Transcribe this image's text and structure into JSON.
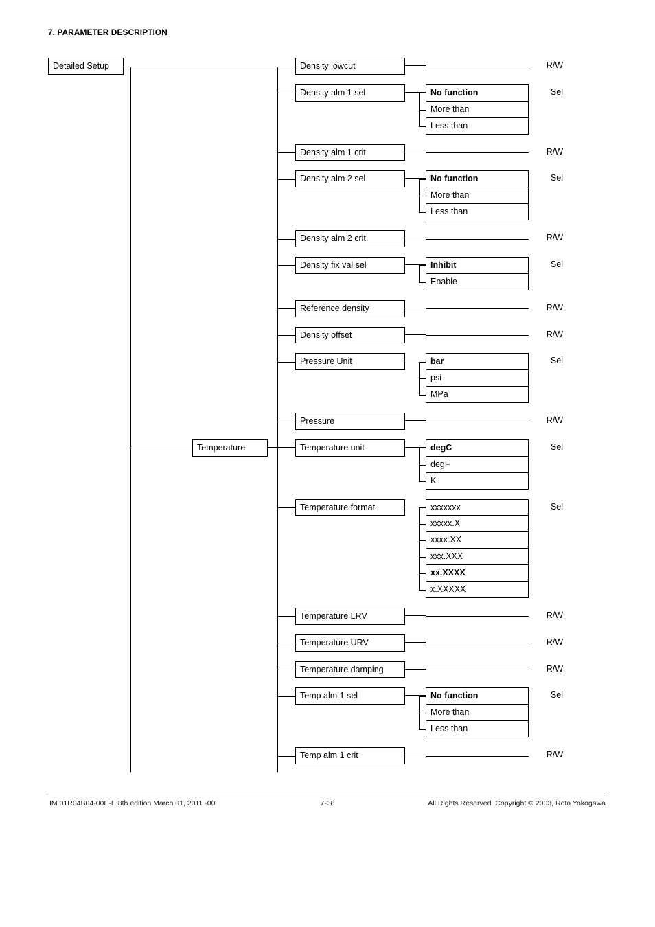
{
  "header": {
    "section_title": "7. PARAMETER DESCRIPTION"
  },
  "root": {
    "label": "Detailed Setup"
  },
  "category": {
    "temperature_label": "Temperature"
  },
  "params": {
    "density_lowcut": {
      "label": "Density lowcut",
      "tag": "R/W"
    },
    "density_alm1_sel": {
      "label": "Density alm 1 sel",
      "tag": "Sel",
      "opts": [
        "No function",
        "More than",
        "Less than"
      ],
      "bold_idx": 0
    },
    "density_alm1_crit": {
      "label": "Density alm 1 crit",
      "tag": "R/W"
    },
    "density_alm2_sel": {
      "label": "Density alm 2 sel",
      "tag": "Sel",
      "opts": [
        "No function",
        "More than",
        "Less than"
      ],
      "bold_idx": 0
    },
    "density_alm2_crit": {
      "label": "Density alm 2 crit",
      "tag": "R/W"
    },
    "density_fix_val_sel": {
      "label": "Density fix val sel",
      "tag": "Sel",
      "opts": [
        "Inhibit",
        "Enable"
      ],
      "bold_idx": 0
    },
    "reference_density": {
      "label": "Reference density",
      "tag": "R/W"
    },
    "density_offset": {
      "label": "Density offset",
      "tag": "R/W"
    },
    "pressure_unit": {
      "label": "Pressure Unit",
      "tag": "Sel",
      "opts": [
        "bar",
        "psi",
        "MPa"
      ],
      "bold_idx": 0
    },
    "pressure": {
      "label": "Pressure",
      "tag": "R/W"
    },
    "temperature_unit": {
      "label": "Temperature unit",
      "tag": "Sel",
      "opts": [
        "degC",
        "degF",
        "K"
      ],
      "bold_idx": 0
    },
    "temperature_format": {
      "label": "Temperature format",
      "tag": "Sel",
      "opts": [
        "xxxxxxx",
        "xxxxx.X",
        "xxxx.XX",
        "xxx.XXX",
        "xx.XXXX",
        "x.XXXXX"
      ],
      "bold_idx": 4
    },
    "temperature_lrv": {
      "label": "Temperature LRV",
      "tag": "R/W"
    },
    "temperature_urv": {
      "label": "Temperature URV",
      "tag": "R/W"
    },
    "temperature_damping": {
      "label": "Temperature damping",
      "tag": "R/W"
    },
    "temp_alm1_sel": {
      "label": "Temp alm 1 sel",
      "tag": "Sel",
      "opts": [
        "No function",
        "More than",
        "Less than"
      ],
      "bold_idx": 0
    },
    "temp_alm1_crit": {
      "label": "Temp alm 1 crit",
      "tag": "R/W"
    }
  },
  "footer": {
    "left": "IM 01R04B04-00E-E    8th edition March 01, 2011 -00",
    "center": "7-38",
    "right": "All Rights Reserved. Copyright © 2003, Rota Yokogawa"
  },
  "style": {
    "border_color": "#000000",
    "bg": "#ffffff",
    "font_size_body": 12.5,
    "font_size_header": 12,
    "font_size_footer": 10.5
  }
}
